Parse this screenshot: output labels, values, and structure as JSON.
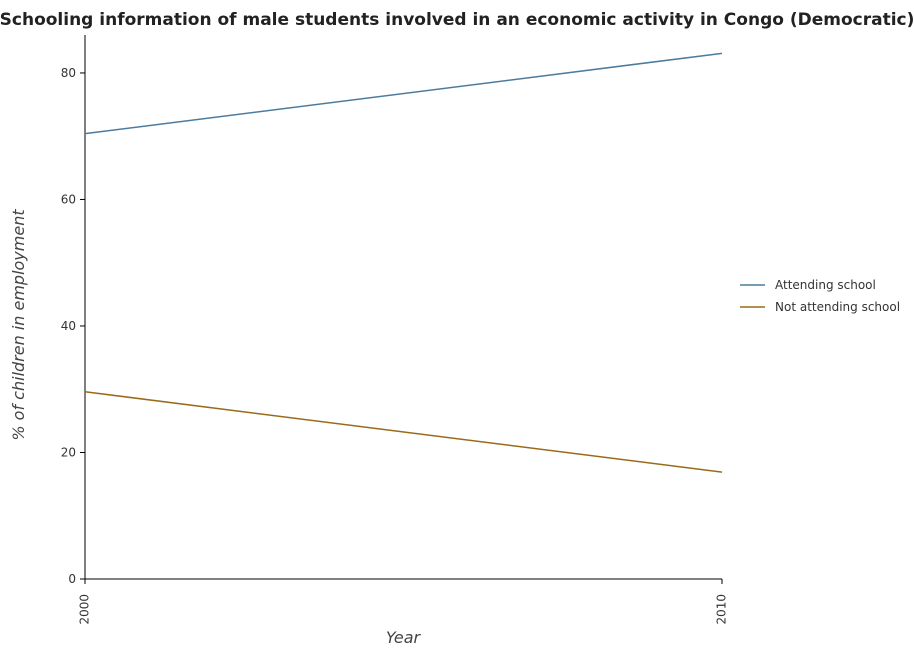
{
  "chart_data": {
    "type": "line",
    "title": "Schooling information of male students involved in an economic activity in Congo (Democratic)",
    "xlabel": "Year",
    "ylabel": "% of children in employment",
    "categories": [
      "2000",
      "2010"
    ],
    "ylim": [
      0,
      86
    ],
    "yticks": [
      "0",
      "20",
      "40",
      "60",
      "80"
    ],
    "grid": false,
    "legend_position": "right",
    "series": [
      {
        "name": "Attending school",
        "values": [
          70.4,
          83.1
        ],
        "color": "#4c7b9e"
      },
      {
        "name": "Not attending school",
        "values": [
          29.6,
          16.9
        ],
        "color": "#9a6a1a"
      }
    ]
  }
}
